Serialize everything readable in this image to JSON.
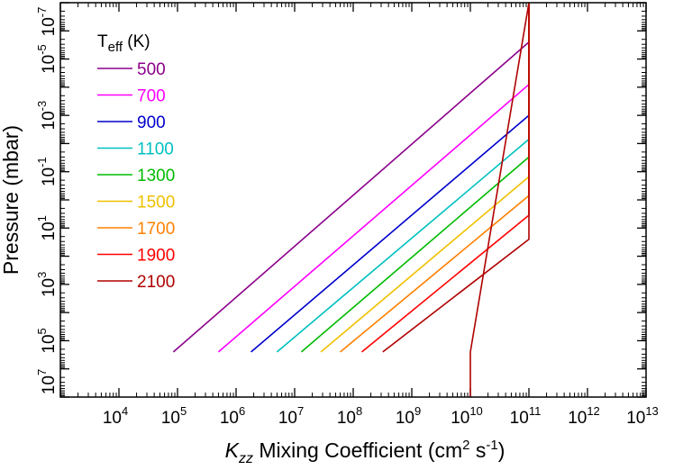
{
  "chart_data": {
    "type": "line",
    "xlabel": {
      "symbol": "K",
      "subscript": "zz",
      "text": " Mixing Coefficient (cm",
      "sup1": "2",
      "mid": " s",
      "sup2": "-1",
      "end": ")"
    },
    "ylabel": "Pressure (mbar)",
    "x_scale": "log",
    "y_scale": "log",
    "y_inverted": true,
    "xlim": [
      1000,
      10000000000000
    ],
    "ylim": [
      10000000,
      1e-07
    ],
    "x_ticks": [
      {
        "base": "10",
        "exp": "4",
        "value": 10000
      },
      {
        "base": "10",
        "exp": "5",
        "value": 100000
      },
      {
        "base": "10",
        "exp": "6",
        "value": 1000000
      },
      {
        "base": "10",
        "exp": "7",
        "value": 10000000
      },
      {
        "base": "10",
        "exp": "8",
        "value": 100000000
      },
      {
        "base": "10",
        "exp": "9",
        "value": 1000000000
      },
      {
        "base": "10",
        "exp": "10",
        "value": 10000000000
      },
      {
        "base": "10",
        "exp": "11",
        "value": 100000000000
      },
      {
        "base": "10",
        "exp": "12",
        "value": 1000000000000
      },
      {
        "base": "10",
        "exp": "13",
        "value": 10000000000000
      }
    ],
    "y_ticks": [
      {
        "base": "10",
        "exp": "-7",
        "value": 1e-07
      },
      {
        "base": "10",
        "exp": "-5",
        "value": 1e-05
      },
      {
        "base": "10",
        "exp": "-3",
        "value": 0.001
      },
      {
        "base": "10",
        "exp": "-1",
        "value": 0.1
      },
      {
        "base": "10",
        "exp": "1",
        "value": 10
      },
      {
        "base": "10",
        "exp": "3",
        "value": 1000
      },
      {
        "base": "10",
        "exp": "5",
        "value": 100000
      },
      {
        "base": "10",
        "exp": "7",
        "value": 10000000
      }
    ],
    "legend": {
      "title": "T",
      "title_sub": "eff",
      "title_suffix": " (K)",
      "placement": "top-left"
    },
    "series": [
      {
        "name": "500",
        "color": "#8b008b",
        "x": [
          85000,
          100000000000,
          100000000000
        ],
        "y": [
          250000,
          2.5e-06,
          1e-07
        ]
      },
      {
        "name": "700",
        "color": "#ff00ff",
        "x": [
          500000,
          100000000000,
          100000000000
        ],
        "y": [
          250000,
          8e-05,
          1e-07
        ]
      },
      {
        "name": "900",
        "color": "#0000cd",
        "x": [
          1800000,
          100000000000,
          100000000000
        ],
        "y": [
          250000,
          0.001,
          1e-07
        ]
      },
      {
        "name": "1100",
        "color": "#00c0c0",
        "x": [
          5000000,
          100000000000,
          100000000000
        ],
        "y": [
          250000,
          0.007,
          1e-07
        ]
      },
      {
        "name": "1300",
        "color": "#00bb00",
        "x": [
          13000000,
          100000000000,
          100000000000
        ],
        "y": [
          250000,
          0.03,
          1e-07
        ]
      },
      {
        "name": "1500",
        "color": "#f0c000",
        "x": [
          28000000,
          100000000000,
          100000000000
        ],
        "y": [
          250000,
          0.15,
          1e-07
        ]
      },
      {
        "name": "1700",
        "color": "#ff8000",
        "x": [
          60000000,
          100000000000,
          100000000000
        ],
        "y": [
          250000,
          0.7,
          1e-07
        ]
      },
      {
        "name": "1900",
        "color": "#ff0000",
        "x": [
          140000000,
          100000000000,
          100000000000
        ],
        "y": [
          250000,
          3.5,
          1e-07
        ]
      },
      {
        "name": "2100",
        "color": "#b00000",
        "x": [
          320000000,
          100000000000,
          100000000000,
          10000000000,
          10000000000
        ],
        "y": [
          250000,
          25,
          1e-07,
          250000,
          10000000
        ]
      }
    ]
  }
}
